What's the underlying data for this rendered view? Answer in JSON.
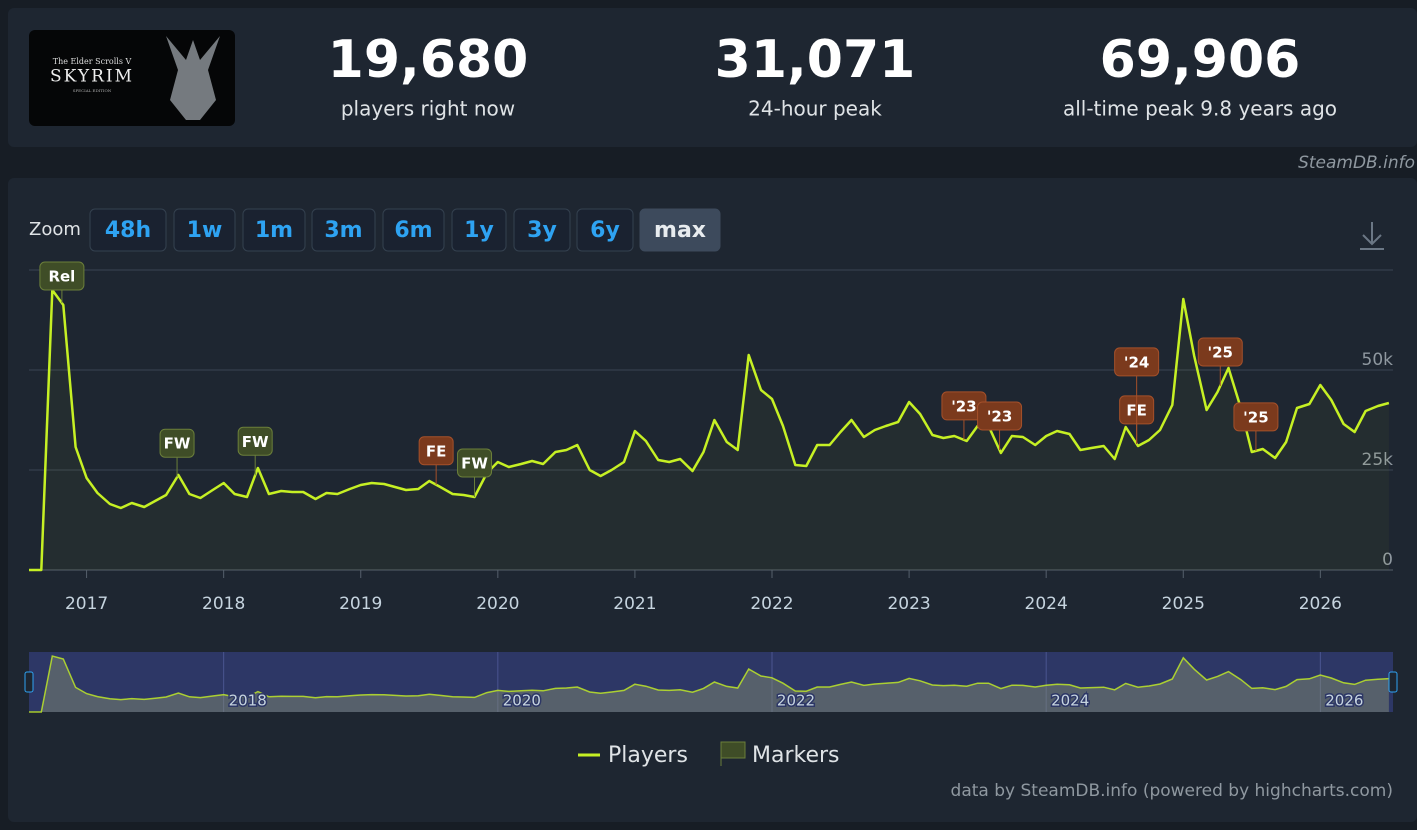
{
  "logo": {
    "line1": "The Elder Scrolls V",
    "line2": "SKYRIM",
    "line3": "SPECIAL EDITION"
  },
  "stats": [
    {
      "value": "19,680",
      "label": "players right now"
    },
    {
      "value": "31,071",
      "label": "24-hour peak"
    },
    {
      "value": "69,906",
      "label": "all-time peak 9.8 years ago"
    }
  ],
  "source": "SteamDB.info",
  "zoom": {
    "label": "Zoom",
    "buttons": [
      "48h",
      "1w",
      "1m",
      "3m",
      "6m",
      "1y",
      "3y",
      "6y",
      "max"
    ],
    "active": 8
  },
  "credit": "data by SteamDB.info (powered by highcharts.com)",
  "chart_data": {
    "type": "line",
    "x": [
      2016.58,
      2016.67,
      2016.75,
      2016.83,
      2016.92,
      2017.0,
      2017.08,
      2017.17,
      2017.25,
      2017.33,
      2017.42,
      2017.5,
      2017.58,
      2017.67,
      2017.75,
      2017.83,
      2017.92,
      2018.0,
      2018.08,
      2018.17,
      2018.25,
      2018.33,
      2018.42,
      2018.5,
      2018.58,
      2018.67,
      2018.75,
      2018.83,
      2018.92,
      2019.0,
      2019.08,
      2019.17,
      2019.25,
      2019.33,
      2019.42,
      2019.5,
      2019.58,
      2019.67,
      2019.75,
      2019.83,
      2019.92,
      2020.0,
      2020.08,
      2020.17,
      2020.25,
      2020.33,
      2020.42,
      2020.5,
      2020.58,
      2020.67,
      2020.75,
      2020.83,
      2020.92,
      2021.0,
      2021.08,
      2021.17,
      2021.25,
      2021.33,
      2021.42,
      2021.5,
      2021.58,
      2021.67,
      2021.75,
      2021.83,
      2021.92,
      2022.0,
      2022.08,
      2022.17,
      2022.25,
      2022.33,
      2022.42,
      2022.5,
      2022.58,
      2022.67,
      2022.75,
      2022.83,
      2022.92,
      2023.0,
      2023.08,
      2023.17,
      2023.25,
      2023.33,
      2023.42,
      2023.5,
      2023.58,
      2023.67,
      2023.75,
      2023.83,
      2023.92,
      2024.0,
      2024.08,
      2024.17,
      2024.25,
      2024.33,
      2024.42,
      2024.5,
      2024.58,
      2024.67,
      2024.75,
      2024.83,
      2024.92,
      2025.0,
      2025.08,
      2025.17,
      2025.25,
      2025.33,
      2025.42,
      2025.5,
      2025.58,
      2025.67,
      2025.75,
      2025.83,
      2025.92,
      2026.0,
      2026.08,
      2026.17,
      2026.25,
      2026.33,
      2026.42,
      2026.5
    ],
    "series": [
      {
        "name": "Players",
        "color": "#c6f024",
        "values": [
          0,
          0,
          70000,
          66250,
          30750,
          23000,
          19250,
          16500,
          15500,
          16750,
          15750,
          17250,
          18750,
          23750,
          19000,
          18000,
          20000,
          21750,
          19000,
          18250,
          25500,
          19000,
          19750,
          19500,
          19500,
          17750,
          19250,
          19000,
          20250,
          21250,
          21750,
          21500,
          20750,
          20000,
          20250,
          22250,
          20750,
          19000,
          18750,
          18250,
          24250,
          27000,
          25750,
          26500,
          27250,
          26500,
          29500,
          30000,
          31250,
          25000,
          23500,
          25000,
          27000,
          34750,
          32250,
          27500,
          27000,
          27750,
          24750,
          29500,
          37500,
          32000,
          30000,
          53750,
          45000,
          42750,
          36000,
          26250,
          26000,
          31250,
          31250,
          34500,
          37500,
          33250,
          35000,
          36000,
          37000,
          42000,
          39000,
          33750,
          33000,
          33500,
          32250,
          36000,
          36000,
          29250,
          33500,
          33250,
          31250,
          33500,
          34750,
          34000,
          30000,
          30500,
          31000,
          27750,
          35750,
          31000,
          32500,
          35000,
          41250,
          67750,
          53500,
          40000,
          44500,
          50500,
          40500,
          29500,
          30250,
          28000,
          32000,
          40500,
          41500,
          46250,
          42500,
          36500,
          34500,
          39750,
          41000,
          41750
        ]
      }
    ],
    "xlim": [
      2016.58,
      2026.53
    ],
    "xticks": [
      2017,
      2018,
      2019,
      2020,
      2021,
      2022,
      2023,
      2024,
      2025,
      2026
    ],
    "ylim": [
      0,
      75000
    ],
    "yticks": [
      0,
      {
        "value": 25000,
        "label": "25k"
      },
      {
        "value": 50000,
        "label": "50k"
      }
    ],
    "grid": true,
    "markers_name": "Markers",
    "markers": [
      {
        "x": 2016.82,
        "label": "Rel",
        "color": "#3f4d27"
      },
      {
        "x": 2017.66,
        "label": "FW",
        "color": "#3f4d27"
      },
      {
        "x": 2018.23,
        "label": "FW",
        "color": "#3f4d27"
      },
      {
        "x": 2019.55,
        "label": "FE",
        "color": "#7b3a1d"
      },
      {
        "x": 2019.83,
        "label": "FW",
        "color": "#3f4d27"
      },
      {
        "x": 2023.4,
        "label": "'23",
        "color": "#7b3a1d"
      },
      {
        "x": 2023.66,
        "label": "'23",
        "color": "#7b3a1d"
      },
      {
        "x": 2024.66,
        "label": "FE",
        "color": "#7b3a1d"
      },
      {
        "x": 2024.66,
        "label": "'24",
        "color": "#7b3a1d"
      },
      {
        "x": 2025.27,
        "label": "'25",
        "color": "#7b3a1d"
      },
      {
        "x": 2025.53,
        "label": "'25",
        "color": "#7b3a1d"
      }
    ],
    "navigator_ticks": [
      2018,
      2020,
      2022,
      2024,
      2026
    ]
  }
}
